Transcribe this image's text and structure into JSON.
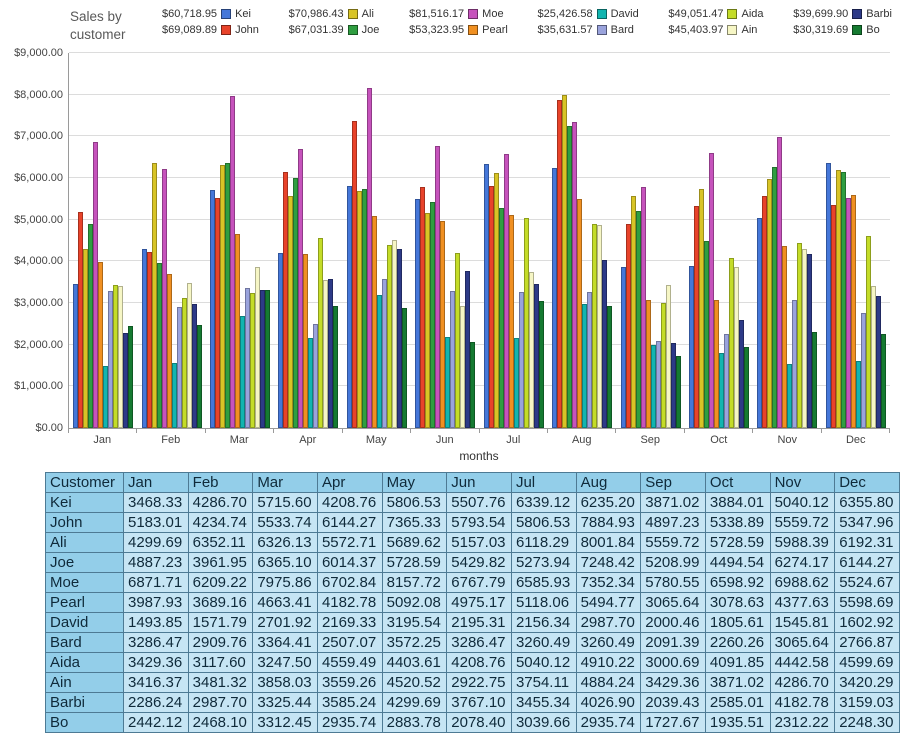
{
  "title": "Sales by customer",
  "legend": [
    {
      "total": "$60,718.95",
      "name": "Kei",
      "color": "#4577D9"
    },
    {
      "total": "$70,986.43",
      "name": "Ali",
      "color": "#D8C426"
    },
    {
      "total": "$81,516.17",
      "name": "Moe",
      "color": "#C653BC"
    },
    {
      "total": "$25,426.58",
      "name": "David",
      "color": "#12B5B0"
    },
    {
      "total": "$49,051.47",
      "name": "Aida",
      "color": "#C4DC28"
    },
    {
      "total": "$39,699.90",
      "name": "Barbi",
      "color": "#2D3A87"
    },
    {
      "total": "$69,089.89",
      "name": "John",
      "color": "#E8432A"
    },
    {
      "total": "$67,031.39",
      "name": "Joe",
      "color": "#2F9E41"
    },
    {
      "total": "$53,323.95",
      "name": "Pearl",
      "color": "#F09022"
    },
    {
      "total": "$35,631.57",
      "name": "Bard",
      "color": "#9AA3DC"
    },
    {
      "total": "$45,403.97",
      "name": "Ain",
      "color": "#F6F6C5"
    },
    {
      "total": "$30,319.69",
      "name": "Bo",
      "color": "#157A31"
    }
  ],
  "chart_data": {
    "type": "bar",
    "title": "Sales by customer",
    "xlabel": "months",
    "ylabel": "",
    "ylim": [
      0,
      9000
    ],
    "grid": "horizontal",
    "legend_position": "top",
    "yticks": [
      "$0.00",
      "$1,000.00",
      "$2,000.00",
      "$3,000.00",
      "$4,000.00",
      "$5,000.00",
      "$6,000.00",
      "$7,000.00",
      "$8,000.00",
      "$9,000.00"
    ],
    "categories": [
      "Jan",
      "Feb",
      "Mar",
      "Apr",
      "May",
      "Jun",
      "Jul",
      "Aug",
      "Sep",
      "Oct",
      "Nov",
      "Dec"
    ],
    "series": [
      {
        "name": "Kei",
        "color": "#4577D9",
        "values": [
          3468.33,
          4286.7,
          5715.6,
          4208.76,
          5806.53,
          5507.76,
          6339.12,
          6235.2,
          3871.02,
          3884.01,
          5040.12,
          6355.8
        ]
      },
      {
        "name": "John",
        "color": "#E8432A",
        "values": [
          5183.01,
          4234.74,
          5533.74,
          6144.27,
          7365.33,
          5793.54,
          5806.53,
          7884.93,
          4897.23,
          5338.89,
          5559.72,
          5347.96
        ]
      },
      {
        "name": "Ali",
        "color": "#D8C426",
        "values": [
          4299.69,
          6352.11,
          6326.13,
          5572.71,
          5689.62,
          5157.03,
          6118.29,
          8001.84,
          5559.72,
          5728.59,
          5988.39,
          6192.31
        ]
      },
      {
        "name": "Joe",
        "color": "#2F9E41",
        "values": [
          4887.23,
          3961.95,
          6365.1,
          6014.37,
          5728.59,
          5429.82,
          5273.94,
          7248.42,
          5208.99,
          4494.54,
          6274.17,
          6144.27
        ]
      },
      {
        "name": "Moe",
        "color": "#C653BC",
        "values": [
          6871.71,
          6209.22,
          7975.86,
          6702.84,
          8157.72,
          6767.79,
          6585.93,
          7352.34,
          5780.55,
          6598.92,
          6988.62,
          5524.67
        ]
      },
      {
        "name": "Pearl",
        "color": "#F09022",
        "values": [
          3987.93,
          3689.16,
          4663.41,
          4182.78,
          5092.08,
          4975.17,
          5118.06,
          5494.77,
          3065.64,
          3078.63,
          4377.63,
          5598.69
        ]
      },
      {
        "name": "David",
        "color": "#12B5B0",
        "values": [
          1493.85,
          1571.79,
          2701.92,
          2169.33,
          3195.54,
          2195.31,
          2156.34,
          2987.7,
          2000.46,
          1805.61,
          1545.81,
          1602.92
        ]
      },
      {
        "name": "Bard",
        "color": "#9AA3DC",
        "values": [
          3286.47,
          2909.76,
          3364.41,
          2507.07,
          3572.25,
          3286.47,
          3260.49,
          3260.49,
          2091.39,
          2260.26,
          3065.64,
          2766.87
        ]
      },
      {
        "name": "Aida",
        "color": "#C4DC28",
        "values": [
          3429.36,
          3117.6,
          3247.5,
          4559.49,
          4403.61,
          4208.76,
          5040.12,
          4910.22,
          3000.69,
          4091.85,
          4442.58,
          4599.69
        ]
      },
      {
        "name": "Ain",
        "color": "#F6F6C5",
        "values": [
          3416.37,
          3481.32,
          3858.03,
          3559.26,
          4520.52,
          2922.75,
          3754.11,
          4884.24,
          3429.36,
          3871.02,
          4286.7,
          3420.29
        ]
      },
      {
        "name": "Barbi",
        "color": "#2D3A87",
        "values": [
          2286.24,
          2987.7,
          3325.44,
          3585.24,
          4299.69,
          3767.1,
          3455.34,
          4026.9,
          2039.43,
          2585.01,
          4182.78,
          3159.03
        ]
      },
      {
        "name": "Bo",
        "color": "#157A31",
        "values": [
          2442.12,
          2468.1,
          3312.45,
          2935.74,
          2883.78,
          2078.4,
          3039.66,
          2935.74,
          1727.67,
          1935.51,
          2312.22,
          2248.3
        ]
      }
    ]
  },
  "table": {
    "columns": [
      "Customer",
      "Jan",
      "Feb",
      "Mar",
      "Apr",
      "May",
      "Jun",
      "Jul",
      "Aug",
      "Sep",
      "Oct",
      "Nov",
      "Dec"
    ],
    "rows": [
      [
        "Kei",
        "3468.33",
        "4286.70",
        "5715.60",
        "4208.76",
        "5806.53",
        "5507.76",
        "6339.12",
        "6235.20",
        "3871.02",
        "3884.01",
        "5040.12",
        "6355.80"
      ],
      [
        "John",
        "5183.01",
        "4234.74",
        "5533.74",
        "6144.27",
        "7365.33",
        "5793.54",
        "5806.53",
        "7884.93",
        "4897.23",
        "5338.89",
        "5559.72",
        "5347.96"
      ],
      [
        "Ali",
        "4299.69",
        "6352.11",
        "6326.13",
        "5572.71",
        "5689.62",
        "5157.03",
        "6118.29",
        "8001.84",
        "5559.72",
        "5728.59",
        "5988.39",
        "6192.31"
      ],
      [
        "Joe",
        "4887.23",
        "3961.95",
        "6365.10",
        "6014.37",
        "5728.59",
        "5429.82",
        "5273.94",
        "7248.42",
        "5208.99",
        "4494.54",
        "6274.17",
        "6144.27"
      ],
      [
        "Moe",
        "6871.71",
        "6209.22",
        "7975.86",
        "6702.84",
        "8157.72",
        "6767.79",
        "6585.93",
        "7352.34",
        "5780.55",
        "6598.92",
        "6988.62",
        "5524.67"
      ],
      [
        "Pearl",
        "3987.93",
        "3689.16",
        "4663.41",
        "4182.78",
        "5092.08",
        "4975.17",
        "5118.06",
        "5494.77",
        "3065.64",
        "3078.63",
        "4377.63",
        "5598.69"
      ],
      [
        "David",
        "1493.85",
        "1571.79",
        "2701.92",
        "2169.33",
        "3195.54",
        "2195.31",
        "2156.34",
        "2987.70",
        "2000.46",
        "1805.61",
        "1545.81",
        "1602.92"
      ],
      [
        "Bard",
        "3286.47",
        "2909.76",
        "3364.41",
        "2507.07",
        "3572.25",
        "3286.47",
        "3260.49",
        "3260.49",
        "2091.39",
        "2260.26",
        "3065.64",
        "2766.87"
      ],
      [
        "Aida",
        "3429.36",
        "3117.60",
        "3247.50",
        "4559.49",
        "4403.61",
        "4208.76",
        "5040.12",
        "4910.22",
        "3000.69",
        "4091.85",
        "4442.58",
        "4599.69"
      ],
      [
        "Ain",
        "3416.37",
        "3481.32",
        "3858.03",
        "3559.26",
        "4520.52",
        "2922.75",
        "3754.11",
        "4884.24",
        "3429.36",
        "3871.02",
        "4286.70",
        "3420.29"
      ],
      [
        "Barbi",
        "2286.24",
        "2987.70",
        "3325.44",
        "3585.24",
        "4299.69",
        "3767.10",
        "3455.34",
        "4026.90",
        "2039.43",
        "2585.01",
        "4182.78",
        "3159.03"
      ],
      [
        "Bo",
        "2442.12",
        "2468.10",
        "3312.45",
        "2935.74",
        "2883.78",
        "2078.40",
        "3039.66",
        "2935.74",
        "1727.67",
        "1935.51",
        "2312.22",
        "2248.30"
      ]
    ]
  }
}
